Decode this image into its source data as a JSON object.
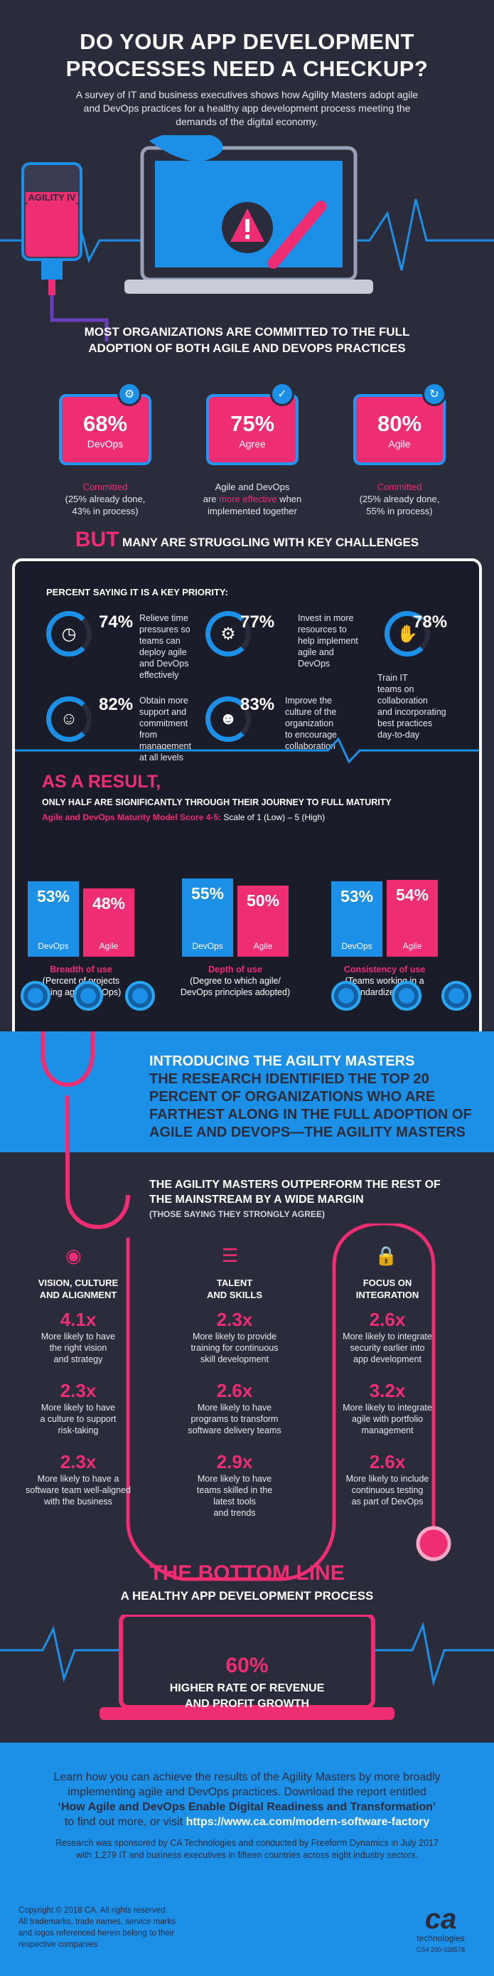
{
  "header": {
    "title_line1": "DO YOUR APP DEVELOPMENT",
    "title_line2": "PROCESSES NEED A CHECKUP?",
    "intro_line1": "A survey of IT and business executives shows how Agility Masters adopt agile",
    "intro_line2": "and DevOps practices for a healthy app development process meeting the",
    "intro_line3": "demands of the digital economy.",
    "iv_label": "AGILITY IV"
  },
  "commitment": {
    "heading_line1": "MOST ORGANIZATIONS ARE COMMITTED TO THE FULL",
    "heading_line2": "ADOPTION OF BOTH AGILE AND DEVOPS PRACTICES",
    "cards": [
      {
        "pct": "68%",
        "label": "DevOps",
        "cap_line1": "Committed",
        "cap_line2": "(25% already done,",
        "cap_line3": "43% in process)"
      },
      {
        "pct": "75%",
        "label": "Agree",
        "cap_line1": "Agile and DevOps",
        "cap_line2a": "are ",
        "cap_line2b": "more effective",
        "cap_line2c": " when",
        "cap_line3": "implemented together"
      },
      {
        "pct": "80%",
        "label": "Agile",
        "cap_line1": "Committed",
        "cap_line2": "(25% already done,",
        "cap_line3": "55% in process)"
      }
    ]
  },
  "challenges": {
    "but": "BUT",
    "heading": "MANY ARE STRUGGLING WITH KEY CHALLENGES",
    "priority_label": "PERCENT SAYING IT IS A KEY PRIORITY:",
    "stats": [
      {
        "pct": "74%",
        "l1": "Relieve time",
        "l2": "pressures so",
        "l3": "teams can",
        "l4": "deploy agile",
        "l5": "and DevOps",
        "l6": "effectively"
      },
      {
        "pct": "77%",
        "l1": "Invest in more",
        "l2": "resources to",
        "l3": "help implement",
        "l4": "agile and",
        "l5": "DevOps"
      },
      {
        "pct": "78%",
        "l1": "Train IT",
        "l2": "teams on",
        "l3": "collaboration",
        "l4": "and incorporating",
        "l5": "best practices",
        "l6": "day-to-day"
      },
      {
        "pct": "82%",
        "l1": "Obtain more",
        "l2": "support and",
        "l3": "commitment",
        "l4": "from",
        "l5": "management",
        "l6": "at all levels"
      },
      {
        "pct": "83%",
        "l1": "Improve the",
        "l2": "culture of the",
        "l3": "organization",
        "l4": "to encourage",
        "l5": "collaboration"
      }
    ],
    "as_result": "AS A RESULT,",
    "half_line": "ONLY HALF ARE SIGNIFICANTLY THROUGH THEIR JOURNEY TO FULL MATURITY",
    "model_a": "Agile and DevOps Maturity Model Score 4-5:",
    "model_b": " Scale of 1 (Low) – 5 (High)"
  },
  "chart_data": {
    "type": "bar",
    "categories": [
      "Breadth of use",
      "Depth of use",
      "Consistency of use"
    ],
    "series": [
      {
        "name": "DevOps",
        "values": [
          53,
          55,
          53
        ]
      },
      {
        "name": "Agile",
        "values": [
          48,
          50,
          54
        ]
      }
    ],
    "category_notes": [
      [
        "(Percent of projects",
        "using agile/DevOps)"
      ],
      [
        "(Degree to which agile/",
        "DevOps principles adopted)"
      ],
      [
        "(Teams working in a",
        "standardized way)"
      ]
    ],
    "value_labels": [
      "53%",
      "48%",
      "55%",
      "50%",
      "53%",
      "54%"
    ],
    "colors": {
      "devops": "#1c8fe6",
      "agile": "#ef2d73"
    }
  },
  "masters": {
    "h1": "INTRODUCING THE AGILITY MASTERS",
    "h2": "THE RESEARCH IDENTIFIED THE TOP 20",
    "h3": "PERCENT OF ORGANIZATIONS WHO ARE",
    "h4": "FARTHEST ALONG IN THE FULL ADOPTION OF",
    "h5": "AGILE AND DEVOPS—THE AGILITY MASTERS"
  },
  "outperform": {
    "h1": "THE AGILITY MASTERS OUTPERFORM THE REST OF",
    "h2": "THE MAINSTREAM BY A WIDE MARGIN",
    "sub": "(THOSE SAYING THEY STRONGLY AGREE)",
    "columns": [
      {
        "h1": "VISION, CULTURE",
        "h2": "AND ALIGNMENT",
        "items": [
          {
            "x": "4.1x",
            "t1": "More likely to have",
            "t2": "the right vision",
            "t3": "and strategy"
          },
          {
            "x": "2.3x",
            "t1": "More likely to have",
            "t2": "a culture to support",
            "t3": "risk-taking"
          },
          {
            "x": "2.3x",
            "t1": "More likely to have a",
            "t2": "software team well-aligned",
            "t3": "with the business"
          }
        ]
      },
      {
        "h1": "TALENT",
        "h2": "AND SKILLS",
        "items": [
          {
            "x": "2.3x",
            "t1": "More likely to provide",
            "t2": "training for continuous",
            "t3": "skill development"
          },
          {
            "x": "2.6x",
            "t1": "More likely to have",
            "t2": "programs to transform",
            "t3": "software delivery teams"
          },
          {
            "x": "2.9x",
            "t1": "More likely to have",
            "t2": "teams skilled in the",
            "t3": "latest tools",
            "t4": "and trends"
          }
        ]
      },
      {
        "h1": "FOCUS ON",
        "h2": "INTEGRATION",
        "items": [
          {
            "x": "2.6x",
            "t1": "More likely to integrate",
            "t2": "security earlier into",
            "t3": "app development"
          },
          {
            "x": "3.2x",
            "t1": "More likely to integrate",
            "t2": "agile with portfolio",
            "t3": "management"
          },
          {
            "x": "2.6x",
            "t1": "More likely to include",
            "t2": "continuous testing",
            "t3": "as part of DevOps"
          }
        ]
      }
    ]
  },
  "bottom": {
    "h1": "THE BOTTOM LINE",
    "h2": "A HEALTHY APP DEVELOPMENT PROCESS",
    "pct": "60%",
    "t1": "HIGHER RATE OF REVENUE",
    "t2": "AND PROFIT GROWTH"
  },
  "footer": {
    "l1": "Learn how you can achieve the results of the Agility Masters by more broadly",
    "l2": "implementing agile and DevOps practices. Download the report entitled",
    "l3": "‘How Agile and DevOps Enable Digital Readiness and Transformation’",
    "l4a": "to find out more, or visit ",
    "l4b": "https://www.ca.com/modern-software-factory",
    "r1": "Research was sponsored by CA Technologies and conducted by Freeform Dynamics in July 2017",
    "r2": "with 1,279 IT and business executives in fifteen countries across eight industry sectors.",
    "c1": "Copyright © 2018 CA. All rights reserved.",
    "c2": "All trademarks, trade names, service marks",
    "c3": "and logos referenced herein belong to their",
    "c4": "respective companies",
    "logo": "ca",
    "logo_sub": "technologies",
    "code": "CS4 200-338578"
  }
}
